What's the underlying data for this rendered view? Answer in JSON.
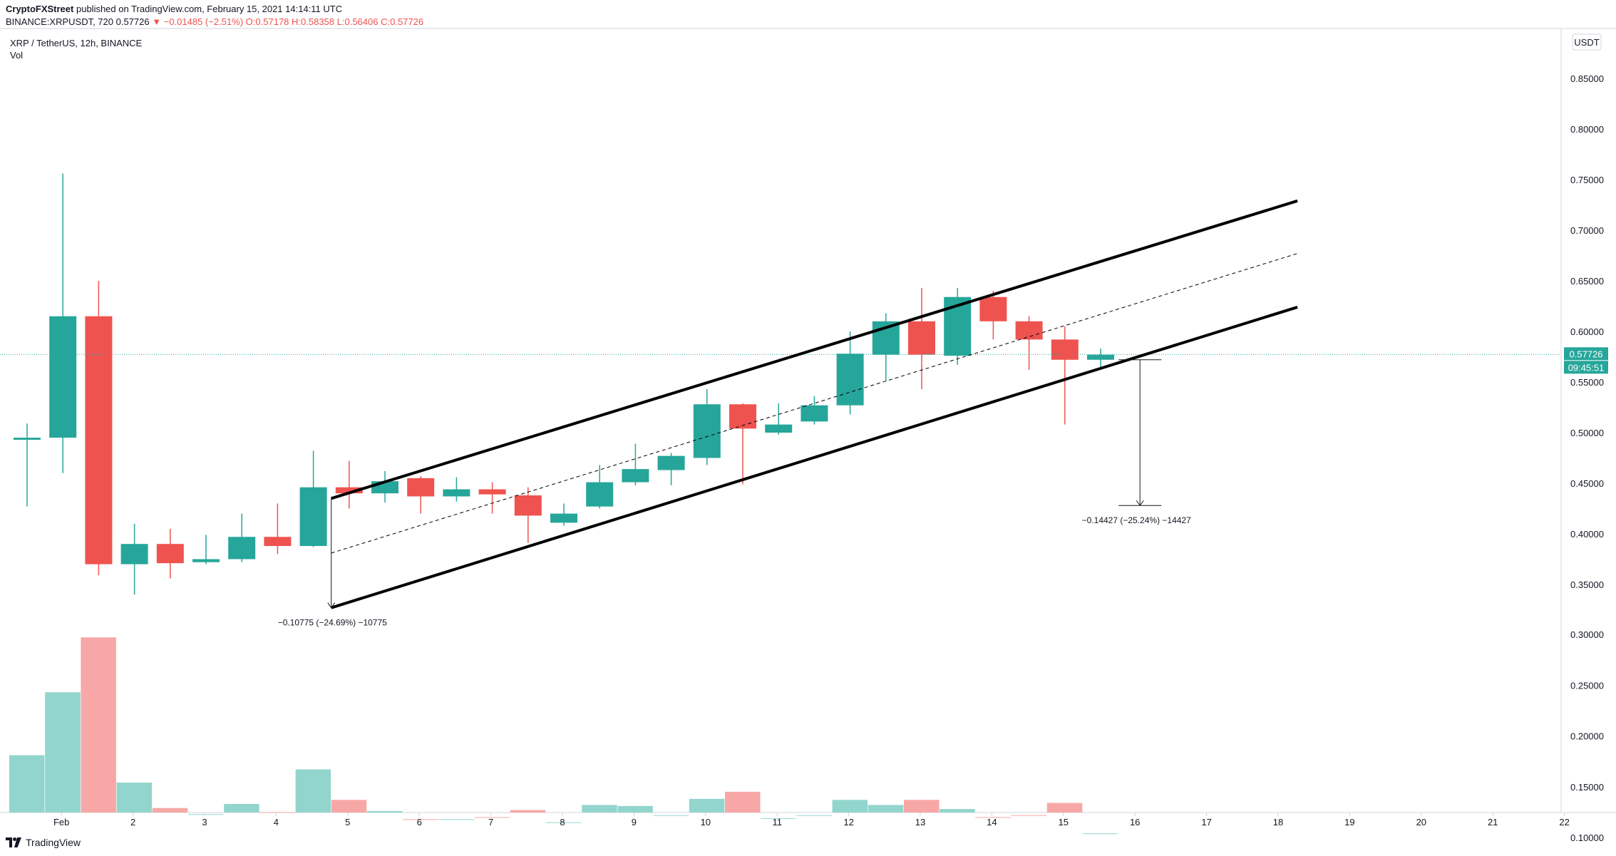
{
  "header": {
    "author": "CryptoFXStreet",
    "published": "published on TradingView.com, February 15, 2021 14:14:11 UTC",
    "symbol_line": "BINANCE:XRPUSDT, 720",
    "last": "0.57726",
    "change": "▼ −0.01485 (−2.51%)",
    "open": "O:0.57178",
    "high": "H:0.58358",
    "low": "L:0.56406",
    "close": "C:0.57726"
  },
  "chart_title": "XRP / TetherUS, 12h, BINANCE",
  "vol_label": "Vol",
  "currency_badge": "USDT",
  "price_label": "0.57726",
  "countdown_label": "09:45:51",
  "footer_brand": "TradingView",
  "colors": {
    "up": "#26a69a",
    "down": "#ef5350",
    "vol_up": "#92d5cd",
    "vol_down": "#f7a8a6",
    "channel": "#000000",
    "price_line": "#26a69a"
  },
  "chart_data": {
    "type": "candlestick",
    "timeframe": "12h",
    "price_axis": {
      "ticks": [
        "0.85000",
        "0.80000",
        "0.75000",
        "0.70000",
        "0.65000",
        "0.60000",
        "0.55000",
        "0.50000",
        "0.45000",
        "0.40000",
        "0.35000"
      ],
      "range": [
        0.3,
        0.86
      ]
    },
    "volume_axis": {
      "ticks": [
        "0.30000",
        "0.25000",
        "0.20000",
        "0.15000",
        "0.10000"
      ],
      "range": [
        0.1,
        0.3
      ]
    },
    "date_labels": [
      "Feb",
      "2",
      "3",
      "4",
      "5",
      "6",
      "7",
      "8",
      "9",
      "10",
      "11",
      "12",
      "13",
      "14",
      "15",
      "16",
      "17",
      "18",
      "19",
      "20",
      "21",
      "22"
    ],
    "candles": [
      {
        "o": 0.493,
        "h": 0.509,
        "l": 0.427,
        "c": 0.495,
        "v": 0.181
      },
      {
        "o": 0.495,
        "h": 0.756,
        "l": 0.46,
        "c": 0.615,
        "v": 0.243
      },
      {
        "o": 0.615,
        "h": 0.65,
        "l": 0.359,
        "c": 0.37,
        "v": 0.297
      },
      {
        "o": 0.37,
        "h": 0.41,
        "l": 0.34,
        "c": 0.39,
        "v": 0.154
      },
      {
        "o": 0.39,
        "h": 0.405,
        "l": 0.356,
        "c": 0.371,
        "v": 0.129
      },
      {
        "o": 0.372,
        "h": 0.399,
        "l": 0.37,
        "c": 0.375,
        "v": 0.123
      },
      {
        "o": 0.375,
        "h": 0.42,
        "l": 0.372,
        "c": 0.397,
        "v": 0.133
      },
      {
        "o": 0.397,
        "h": 0.43,
        "l": 0.38,
        "c": 0.388,
        "v": 0.125
      },
      {
        "o": 0.388,
        "h": 0.482,
        "l": 0.387,
        "c": 0.446,
        "v": 0.167
      },
      {
        "o": 0.446,
        "h": 0.472,
        "l": 0.425,
        "c": 0.44,
        "v": 0.137
      },
      {
        "o": 0.44,
        "h": 0.462,
        "l": 0.431,
        "c": 0.452,
        "v": 0.126
      },
      {
        "o": 0.455,
        "h": 0.457,
        "l": 0.42,
        "c": 0.437,
        "v": 0.118
      },
      {
        "o": 0.437,
        "h": 0.456,
        "l": 0.432,
        "c": 0.444,
        "v": 0.118
      },
      {
        "o": 0.444,
        "h": 0.451,
        "l": 0.42,
        "c": 0.439,
        "v": 0.12
      },
      {
        "o": 0.438,
        "h": 0.446,
        "l": 0.391,
        "c": 0.418,
        "v": 0.127
      },
      {
        "o": 0.411,
        "h": 0.43,
        "l": 0.408,
        "c": 0.42,
        "v": 0.115
      },
      {
        "o": 0.427,
        "h": 0.468,
        "l": 0.425,
        "c": 0.451,
        "v": 0.132
      },
      {
        "o": 0.451,
        "h": 0.489,
        "l": 0.448,
        "c": 0.464,
        "v": 0.131
      },
      {
        "o": 0.463,
        "h": 0.48,
        "l": 0.448,
        "c": 0.477,
        "v": 0.122
      },
      {
        "o": 0.475,
        "h": 0.543,
        "l": 0.468,
        "c": 0.528,
        "v": 0.138
      },
      {
        "o": 0.528,
        "h": 0.529,
        "l": 0.449,
        "c": 0.504,
        "v": 0.145
      },
      {
        "o": 0.5,
        "h": 0.529,
        "l": 0.498,
        "c": 0.508,
        "v": 0.119
      },
      {
        "o": 0.511,
        "h": 0.536,
        "l": 0.508,
        "c": 0.527,
        "v": 0.122
      },
      {
        "o": 0.527,
        "h": 0.6,
        "l": 0.518,
        "c": 0.578,
        "v": 0.137
      },
      {
        "o": 0.577,
        "h": 0.618,
        "l": 0.551,
        "c": 0.61,
        "v": 0.132
      },
      {
        "o": 0.61,
        "h": 0.643,
        "l": 0.543,
        "c": 0.577,
        "v": 0.137
      },
      {
        "o": 0.576,
        "h": 0.643,
        "l": 0.567,
        "c": 0.634,
        "v": 0.128
      },
      {
        "o": 0.634,
        "h": 0.64,
        "l": 0.592,
        "c": 0.61,
        "v": 0.12
      },
      {
        "o": 0.61,
        "h": 0.615,
        "l": 0.562,
        "c": 0.592,
        "v": 0.122
      },
      {
        "o": 0.592,
        "h": 0.605,
        "l": 0.508,
        "c": 0.572,
        "v": 0.134
      },
      {
        "o": 0.572,
        "h": 0.583,
        "l": 0.564,
        "c": 0.577,
        "v": 0.104
      }
    ],
    "channel": {
      "upper": [
        [
          8.5,
          0.435
        ],
        [
          35.5,
          0.729
        ]
      ],
      "lower": [
        [
          8.5,
          0.327
        ],
        [
          35.5,
          0.624
        ]
      ],
      "middle": [
        [
          8.5,
          0.381
        ],
        [
          35.5,
          0.677
        ]
      ]
    },
    "measurements": [
      {
        "label": "−0.10775 (−24.69%) −10775",
        "from": 0.435,
        "to": 0.327,
        "x": 8.5
      },
      {
        "label": "−0.14427 (−25.24%) −14427",
        "from": 0.572,
        "to": 0.428,
        "x": 31.1
      }
    ],
    "last_price": 0.57726
  }
}
